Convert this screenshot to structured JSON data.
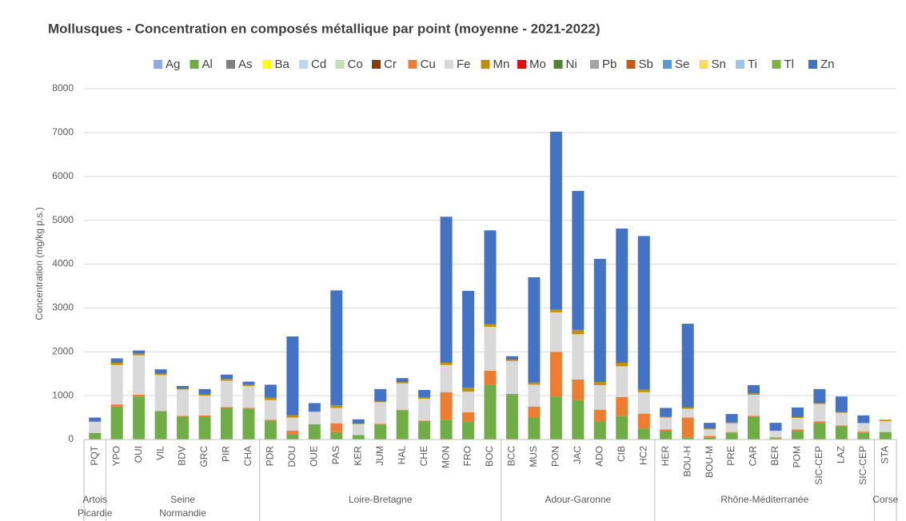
{
  "chart_data": {
    "type": "stacked_bar",
    "title": "Mollusques - Concentration en composés métallique par point (moyenne - 2021-2022)",
    "y_label": "Concentration (mg/kg p.s.)",
    "categories": [
      "PQT",
      "YPO",
      "OUI",
      "VIL",
      "BDV",
      "GRC",
      "PIR",
      "CHA",
      "PDR",
      "DOU",
      "OUE",
      "PAS",
      "KER",
      "JUM",
      "HAL",
      "CHE",
      "MON",
      "FRO",
      "BOC",
      "BCC",
      "MUS",
      "PON",
      "JAC",
      "ADO",
      "CIB",
      "HC2",
      "HER",
      "BOU-H",
      "BOU-M",
      "PRE",
      "CAR",
      "BER",
      "POM",
      "SIC-CEP",
      "LAZ",
      "SIC-CEP",
      "STA"
    ],
    "groups": [
      {
        "label": [
          "Artois",
          "Picardie"
        ],
        "count": 1
      },
      {
        "label": [
          "Seine",
          "Normandie"
        ],
        "count": 7
      },
      {
        "label": [
          "Loire-Bretagne"
        ],
        "count": 11
      },
      {
        "label": [
          "Adour-Garonne"
        ],
        "count": 7
      },
      {
        "label": [
          "Rhône-Méditerranée"
        ],
        "count": 10
      },
      {
        "label": [
          "Corse"
        ],
        "count": 1
      }
    ],
    "ylim": [
      0,
      8000
    ],
    "yticks": [
      0,
      1000,
      2000,
      3000,
      4000,
      5000,
      6000,
      7000,
      8000
    ],
    "grid": true,
    "legend": "top",
    "series": [
      {
        "name": "Ag",
        "color": "#8faadc",
        "values": [
          0,
          0,
          0,
          0,
          0,
          0,
          0,
          0,
          0,
          0,
          0,
          0,
          0,
          0,
          0,
          0,
          0,
          0,
          0,
          0,
          0,
          0,
          0,
          0,
          0,
          0,
          0,
          0,
          0,
          0,
          0,
          0,
          0,
          0,
          0,
          0,
          0
        ]
      },
      {
        "name": "Al",
        "color": "#70ad47",
        "values": [
          150,
          750,
          980,
          650,
          520,
          520,
          720,
          700,
          430,
          120,
          350,
          170,
          100,
          340,
          660,
          400,
          450,
          400,
          1250,
          1020,
          500,
          980,
          900,
          400,
          540,
          250,
          200,
          50,
          50,
          150,
          520,
          30,
          200,
          380,
          300,
          150,
          170
        ]
      },
      {
        "name": "As",
        "color": "#7f7f7f",
        "values": [
          0,
          0,
          0,
          0,
          0,
          0,
          0,
          0,
          0,
          0,
          0,
          0,
          0,
          0,
          0,
          0,
          0,
          0,
          0,
          0,
          0,
          0,
          0,
          0,
          0,
          0,
          0,
          0,
          0,
          0,
          0,
          0,
          0,
          0,
          0,
          0,
          0
        ]
      },
      {
        "name": "Ba",
        "color": "#ffff00",
        "values": [
          0,
          0,
          0,
          0,
          0,
          0,
          0,
          0,
          0,
          0,
          0,
          0,
          0,
          0,
          0,
          0,
          0,
          0,
          0,
          0,
          0,
          0,
          0,
          0,
          0,
          0,
          0,
          0,
          0,
          0,
          0,
          0,
          0,
          0,
          0,
          0,
          0
        ]
      },
      {
        "name": "Cd",
        "color": "#bdd7ee",
        "values": [
          0,
          0,
          0,
          0,
          0,
          0,
          0,
          0,
          0,
          0,
          0,
          0,
          0,
          0,
          0,
          0,
          0,
          0,
          0,
          0,
          0,
          0,
          0,
          0,
          0,
          0,
          0,
          0,
          0,
          0,
          0,
          0,
          0,
          0,
          0,
          0,
          0
        ]
      },
      {
        "name": "Co",
        "color": "#c5e0b4",
        "values": [
          0,
          0,
          0,
          0,
          0,
          0,
          0,
          0,
          0,
          0,
          0,
          0,
          0,
          0,
          0,
          0,
          0,
          0,
          0,
          0,
          0,
          0,
          0,
          0,
          0,
          0,
          0,
          0,
          0,
          0,
          0,
          0,
          0,
          0,
          0,
          0,
          0
        ]
      },
      {
        "name": "Cr",
        "color": "#843c0c",
        "values": [
          0,
          0,
          0,
          0,
          0,
          0,
          0,
          0,
          0,
          0,
          0,
          0,
          0,
          0,
          0,
          0,
          0,
          0,
          0,
          0,
          0,
          0,
          0,
          0,
          0,
          0,
          0,
          0,
          0,
          0,
          0,
          0,
          0,
          0,
          0,
          0,
          0
        ]
      },
      {
        "name": "Cu",
        "color": "#ed7d31",
        "values": [
          0,
          50,
          40,
          0,
          20,
          30,
          20,
          20,
          20,
          80,
          0,
          200,
          0,
          20,
          20,
          30,
          630,
          220,
          320,
          20,
          250,
          1020,
          470,
          280,
          430,
          340,
          30,
          450,
          30,
          20,
          20,
          20,
          30,
          30,
          20,
          30,
          0
        ]
      },
      {
        "name": "Fe",
        "color": "#d9d9d9",
        "values": [
          250,
          900,
          900,
          820,
          600,
          450,
          600,
          500,
          450,
          300,
          280,
          350,
          250,
          490,
          600,
          500,
          620,
          470,
          1000,
          750,
          500,
          900,
          1030,
          560,
          700,
          490,
          270,
          200,
          150,
          200,
          480,
          150,
          260,
          400,
          290,
          190,
          250
        ]
      },
      {
        "name": "Mn",
        "color": "#bf9000",
        "values": [
          20,
          50,
          40,
          30,
          20,
          30,
          40,
          30,
          50,
          50,
          10,
          60,
          10,
          20,
          30,
          30,
          50,
          90,
          60,
          30,
          50,
          70,
          100,
          70,
          80,
          60,
          20,
          30,
          20,
          20,
          30,
          0,
          20,
          20,
          20,
          10,
          20
        ]
      },
      {
        "name": "Mo",
        "color": "#ff0000",
        "values": [
          0,
          0,
          0,
          0,
          0,
          0,
          0,
          0,
          0,
          0,
          0,
          0,
          0,
          0,
          0,
          0,
          0,
          0,
          0,
          0,
          0,
          0,
          0,
          0,
          0,
          0,
          0,
          0,
          0,
          0,
          0,
          0,
          0,
          0,
          0,
          0,
          0
        ]
      },
      {
        "name": "Ni",
        "color": "#548235",
        "values": [
          0,
          0,
          0,
          0,
          0,
          0,
          0,
          0,
          0,
          0,
          0,
          0,
          0,
          0,
          0,
          0,
          0,
          0,
          0,
          0,
          0,
          0,
          0,
          0,
          0,
          0,
          0,
          0,
          0,
          0,
          0,
          0,
          0,
          0,
          0,
          0,
          0
        ]
      },
      {
        "name": "Pb",
        "color": "#a5a5a5",
        "values": [
          0,
          0,
          0,
          0,
          0,
          0,
          0,
          0,
          0,
          0,
          0,
          0,
          0,
          0,
          0,
          0,
          0,
          0,
          0,
          0,
          0,
          0,
          0,
          0,
          0,
          0,
          0,
          0,
          0,
          0,
          0,
          0,
          0,
          0,
          0,
          0,
          0
        ]
      },
      {
        "name": "Sb",
        "color": "#c55a11",
        "values": [
          0,
          0,
          0,
          0,
          0,
          0,
          0,
          0,
          0,
          0,
          0,
          0,
          0,
          0,
          0,
          0,
          0,
          0,
          0,
          0,
          0,
          0,
          0,
          0,
          0,
          0,
          0,
          0,
          0,
          0,
          0,
          0,
          0,
          0,
          0,
          0,
          0
        ]
      },
      {
        "name": "Se",
        "color": "#5b9bd5",
        "values": [
          0,
          0,
          0,
          0,
          0,
          0,
          0,
          0,
          0,
          0,
          0,
          0,
          0,
          0,
          0,
          0,
          0,
          0,
          0,
          0,
          0,
          0,
          0,
          0,
          0,
          0,
          0,
          0,
          0,
          0,
          0,
          0,
          0,
          0,
          0,
          0,
          0
        ]
      },
      {
        "name": "Sn",
        "color": "#ffd966",
        "values": [
          0,
          0,
          0,
          0,
          0,
          0,
          0,
          0,
          0,
          0,
          0,
          0,
          0,
          0,
          0,
          0,
          0,
          0,
          0,
          0,
          0,
          0,
          0,
          0,
          0,
          0,
          0,
          0,
          0,
          0,
          0,
          0,
          0,
          0,
          0,
          0,
          0
        ]
      },
      {
        "name": "Ti",
        "color": "#9dc3e6",
        "values": [
          0,
          0,
          0,
          0,
          0,
          0,
          0,
          0,
          0,
          0,
          0,
          0,
          0,
          0,
          0,
          0,
          0,
          0,
          0,
          0,
          0,
          0,
          0,
          0,
          0,
          0,
          0,
          0,
          0,
          0,
          0,
          0,
          0,
          0,
          0,
          0,
          0
        ]
      },
      {
        "name": "Tl",
        "color": "#7cb342",
        "values": [
          0,
          0,
          0,
          0,
          0,
          0,
          0,
          0,
          0,
          0,
          0,
          0,
          0,
          0,
          0,
          0,
          0,
          0,
          0,
          0,
          0,
          0,
          0,
          0,
          0,
          0,
          0,
          0,
          0,
          0,
          0,
          0,
          0,
          0,
          0,
          0,
          0
        ]
      },
      {
        "name": "Zn",
        "color": "#4472c4",
        "values": [
          80,
          100,
          70,
          100,
          60,
          120,
          100,
          70,
          300,
          1800,
          190,
          2620,
          100,
          280,
          90,
          170,
          3330,
          2210,
          2140,
          80,
          2400,
          4050,
          3170,
          2810,
          3060,
          3500,
          200,
          1910,
          130,
          190,
          190,
          180,
          220,
          320,
          350,
          170,
          10
        ]
      }
    ]
  }
}
